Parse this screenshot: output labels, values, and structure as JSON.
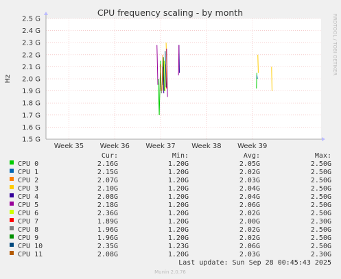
{
  "side_label": "RRDTOOL / TOBI OETIKER",
  "footer": "Munin 2.0.76",
  "last_update": "Last update: Sun Sep 28 00:45:43 2025",
  "legend_headers": {
    "cur": "Cur:",
    "min": "Min:",
    "avg": "Avg:",
    "max": "Max:"
  },
  "legend_rows": [
    {
      "name": "CPU 0",
      "color": "#00cc00",
      "cur": "2.16G",
      "min": "1.20G",
      "avg": "2.05G",
      "max": "2.50G"
    },
    {
      "name": "CPU 1",
      "color": "#0066b3",
      "cur": "2.15G",
      "min": "1.20G",
      "avg": "2.02G",
      "max": "2.50G"
    },
    {
      "name": "CPU 2",
      "color": "#ff8000",
      "cur": "2.07G",
      "min": "1.20G",
      "avg": "2.03G",
      "max": "2.50G"
    },
    {
      "name": "CPU 3",
      "color": "#ffcc00",
      "cur": "2.10G",
      "min": "1.20G",
      "avg": "2.04G",
      "max": "2.50G"
    },
    {
      "name": "CPU 4",
      "color": "#330099",
      "cur": "2.08G",
      "min": "1.20G",
      "avg": "2.04G",
      "max": "2.50G"
    },
    {
      "name": "CPU 5",
      "color": "#990099",
      "cur": "2.18G",
      "min": "1.20G",
      "avg": "2.06G",
      "max": "2.50G"
    },
    {
      "name": "CPU 6",
      "color": "#ccff00",
      "cur": "2.36G",
      "min": "1.20G",
      "avg": "2.02G",
      "max": "2.50G"
    },
    {
      "name": "CPU 7",
      "color": "#ff0000",
      "cur": "1.89G",
      "min": "1.20G",
      "avg": "2.00G",
      "max": "2.30G"
    },
    {
      "name": "CPU 8",
      "color": "#808080",
      "cur": "1.96G",
      "min": "1.20G",
      "avg": "2.02G",
      "max": "2.50G"
    },
    {
      "name": "CPU 9",
      "color": "#008f00",
      "cur": "1.96G",
      "min": "1.20G",
      "avg": "2.02G",
      "max": "2.50G"
    },
    {
      "name": "CPU 10",
      "color": "#00487d",
      "cur": "2.35G",
      "min": "1.23G",
      "avg": "2.06G",
      "max": "2.50G"
    },
    {
      "name": "CPU 11",
      "color": "#b35a00",
      "cur": "2.08G",
      "min": "1.20G",
      "avg": "2.03G",
      "max": "2.30G"
    }
  ],
  "chart_data": {
    "type": "line",
    "title": "CPU frequency scaling - by month",
    "ylabel": "Hz",
    "xlabel": "",
    "ylim": [
      1.5,
      2.5
    ],
    "xlim": [
      34.5,
      40.5
    ],
    "y_ticks": [
      {
        "v": 1.5,
        "label": "1.5 G"
      },
      {
        "v": 1.6,
        "label": "1.6 G"
      },
      {
        "v": 1.7,
        "label": "1.7 G"
      },
      {
        "v": 1.8,
        "label": "1.8 G"
      },
      {
        "v": 1.9,
        "label": "1.9 G"
      },
      {
        "v": 2.0,
        "label": "2.0 G"
      },
      {
        "v": 2.1,
        "label": "2.1 G"
      },
      {
        "v": 2.2,
        "label": "2.2 G"
      },
      {
        "v": 2.3,
        "label": "2.3 G"
      },
      {
        "v": 2.4,
        "label": "2.4 G"
      },
      {
        "v": 2.5,
        "label": "2.5 G"
      }
    ],
    "x_ticks": [
      {
        "v": 35,
        "label": "Week 35"
      },
      {
        "v": 36,
        "label": "Week 36"
      },
      {
        "v": 37,
        "label": "Week 37"
      },
      {
        "v": 38,
        "label": "Week 38"
      },
      {
        "v": 39,
        "label": "Week 39"
      }
    ],
    "grid": true,
    "series": [
      {
        "name": "CPU 0",
        "color": "#00cc00",
        "points": [
          [
            36.95,
            2.0
          ],
          [
            36.97,
            1.7
          ],
          [
            37.0,
            2.15
          ],
          [
            39.09,
            1.92
          ],
          [
            39.1,
            2.05
          ]
        ]
      },
      {
        "name": "CPU 1",
        "color": "#0066b3",
        "points": [
          [
            37.04,
            1.95
          ],
          [
            37.06,
            2.15
          ],
          [
            39.1,
            2.03
          ],
          [
            39.11,
            2.0
          ]
        ]
      },
      {
        "name": "CPU 2",
        "color": "#ff8000",
        "points": [
          [
            37.03,
            1.9
          ],
          [
            37.05,
            2.2
          ]
        ]
      },
      {
        "name": "CPU 3",
        "color": "#ffcc00",
        "points": [
          [
            37.12,
            2.3
          ],
          [
            37.14,
            1.95
          ],
          [
            39.12,
            2.2
          ],
          [
            39.13,
            2.05
          ],
          [
            39.42,
            2.1
          ],
          [
            39.43,
            1.9
          ]
        ]
      },
      {
        "name": "CPU 4",
        "color": "#330099",
        "points": [
          [
            37.05,
            2.1
          ],
          [
            37.07,
            1.88
          ],
          [
            37.4,
            2.28
          ],
          [
            37.41,
            2.05
          ]
        ]
      },
      {
        "name": "CPU 5",
        "color": "#990099",
        "points": [
          [
            36.92,
            2.28
          ],
          [
            36.94,
            1.95
          ],
          [
            37.13,
            2.25
          ],
          [
            37.15,
            1.85
          ],
          [
            37.39,
            2.03
          ],
          [
            37.4,
            2.28
          ]
        ]
      },
      {
        "name": "CPU 6",
        "color": "#ccff00",
        "points": [
          [
            37.08,
            2.15
          ],
          [
            37.1,
            1.9
          ]
        ]
      },
      {
        "name": "CPU 7",
        "color": "#ff0000",
        "points": [
          [
            37.11,
            2.12
          ],
          [
            37.13,
            1.92
          ]
        ]
      },
      {
        "name": "CPU 8",
        "color": "#808080",
        "points": [
          [
            37.0,
            2.05
          ],
          [
            37.02,
            1.88
          ]
        ]
      },
      {
        "name": "CPU 9",
        "color": "#008f00",
        "points": [
          [
            37.06,
            2.18
          ],
          [
            37.08,
            1.9
          ]
        ]
      },
      {
        "name": "CPU 10",
        "color": "#00487d",
        "points": [
          [
            37.1,
            2.23
          ],
          [
            37.12,
            1.93
          ]
        ]
      },
      {
        "name": "CPU 11",
        "color": "#b35a00",
        "points": [
          [
            36.99,
            2.12
          ],
          [
            37.01,
            1.9
          ]
        ]
      }
    ]
  }
}
